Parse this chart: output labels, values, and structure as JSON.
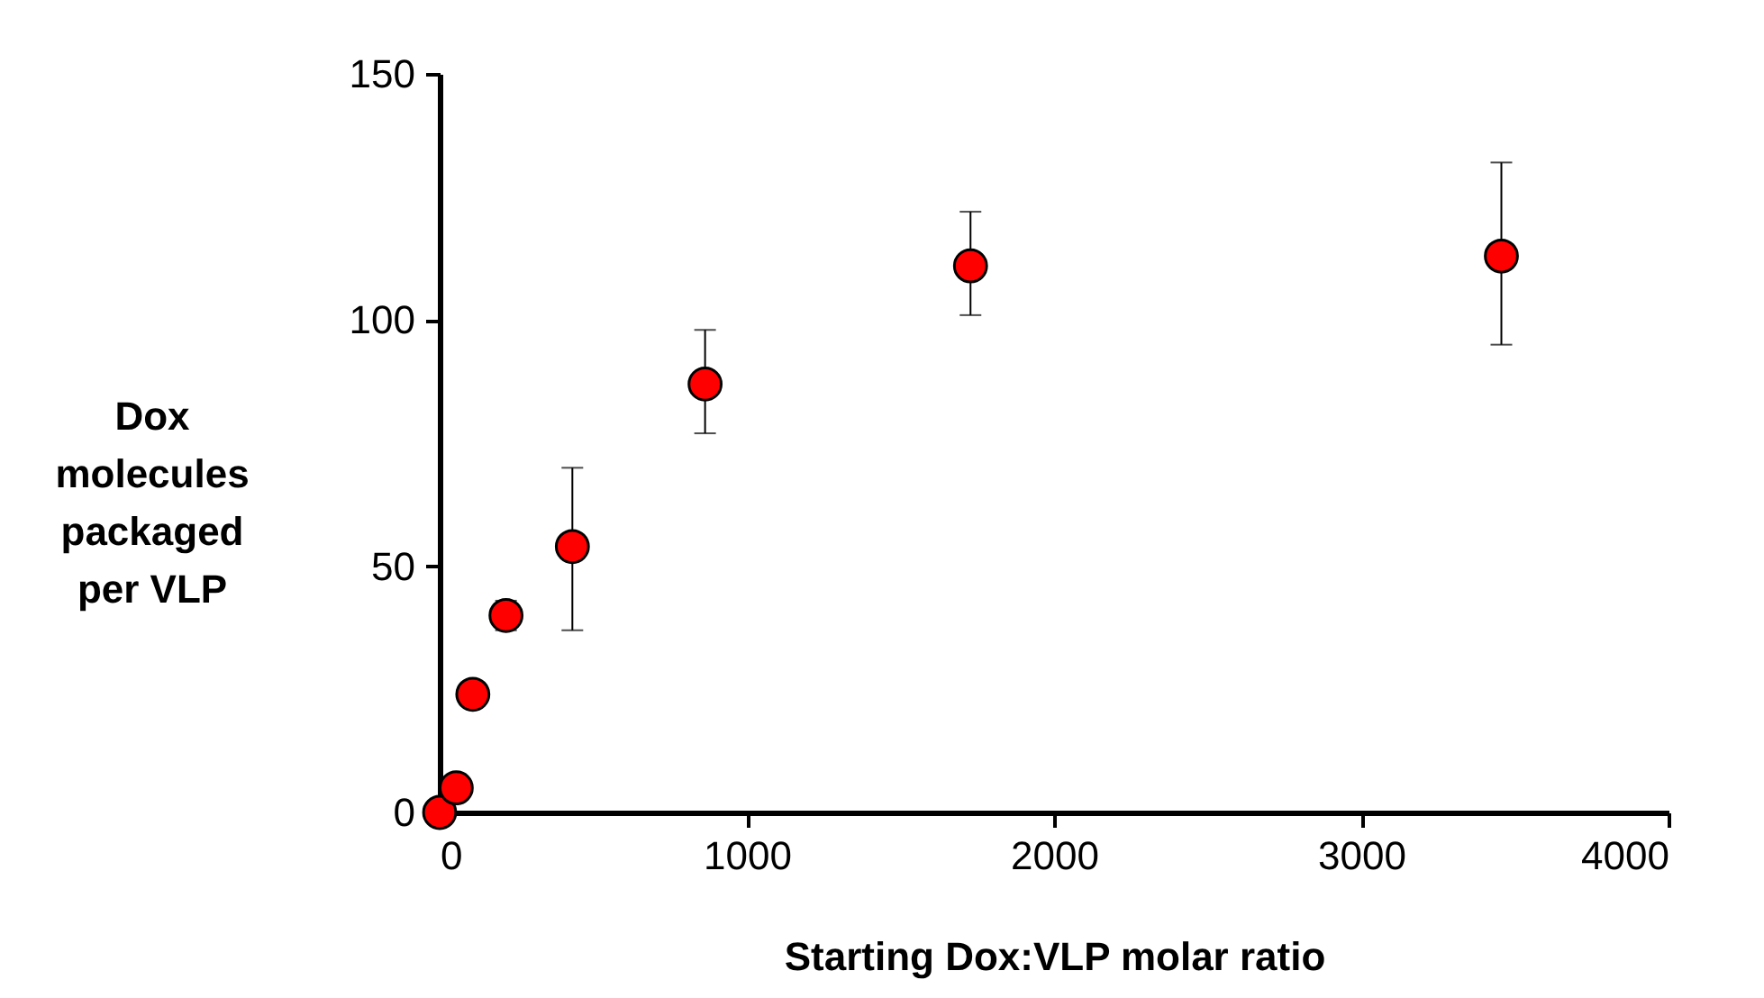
{
  "chart_data": {
    "type": "scatter",
    "xlabel": "Starting Dox:VLP molar ratio",
    "ylabel": "Dox\nmolecules\npackaged\nper VLP",
    "x": [
      0,
      54,
      108,
      216,
      432,
      864,
      1728,
      3456
    ],
    "series": [
      {
        "color": "#ff0000",
        "values": [
          0,
          5,
          24,
          40,
          54,
          87,
          111,
          113
        ],
        "errors": [
          null,
          null,
          null,
          [
            37,
            43
          ],
          [
            37,
            70
          ],
          [
            77,
            98
          ],
          [
            101,
            122
          ],
          [
            95,
            132
          ]
        ]
      }
    ],
    "xlim": [
      0,
      4000
    ],
    "xticks": [
      0,
      1000,
      2000,
      3000,
      4000
    ],
    "ylim": [
      0,
      150
    ],
    "yticks": [
      0,
      50,
      100,
      150
    ],
    "marker": "circle",
    "grid": false
  }
}
